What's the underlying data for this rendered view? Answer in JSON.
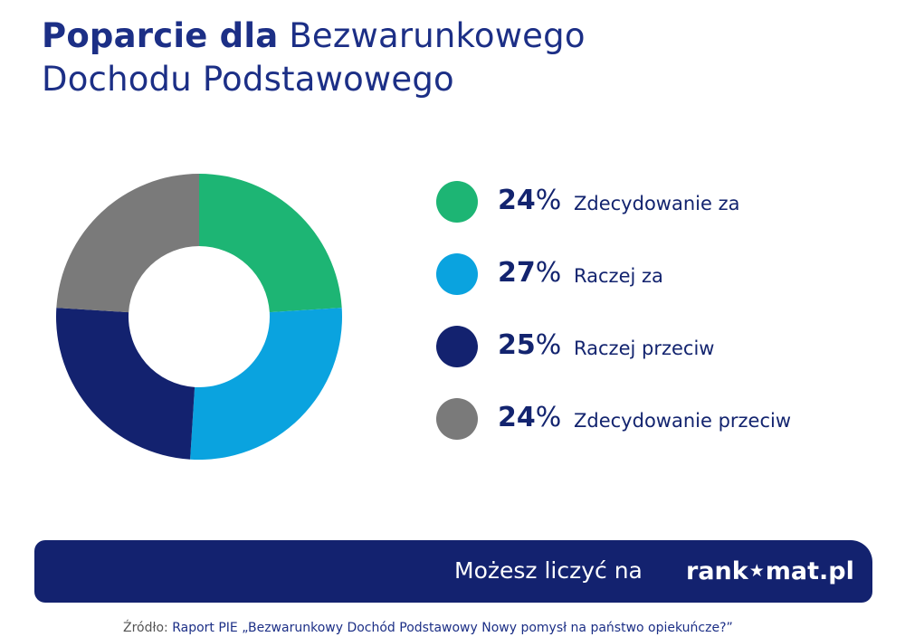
{
  "title": {
    "bold": "Poparcie dla",
    "line1_rest": "Bezwarunkowego",
    "line2": "Dochodu Podstawowego"
  },
  "chart_data": {
    "type": "pie",
    "donut": true,
    "categories": [
      "Zdecydowanie za",
      "Raczej za",
      "Raczej przeciw",
      "Zdecydowanie przeciw"
    ],
    "values": [
      24,
      27,
      25,
      24
    ],
    "unit": "%",
    "colors": [
      "#1db574",
      "#0aa3df",
      "#13226f",
      "#7a7a7a"
    ],
    "legend_position": "right"
  },
  "legend": [
    {
      "pct": "24",
      "label": "Zdecydowanie za"
    },
    {
      "pct": "27",
      "label": "Raczej za"
    },
    {
      "pct": "25",
      "label": "Raczej przeciw"
    },
    {
      "pct": "24",
      "label": "Zdecydowanie przeciw"
    }
  ],
  "footer": {
    "tagline": "Możesz liczyć na",
    "brand_left": "rank",
    "brand_star": "★",
    "brand_right": "mat.pl"
  },
  "source": {
    "prefix": "Źródło:",
    "text": "Raport PIE „Bezwarunkowy Dochód Podstawowy Nowy pomysł na państwo opiekuńcze?”"
  },
  "colors": {
    "title": "#1c2f86",
    "footer_bg": "#13226f",
    "background": "#ffffff"
  }
}
